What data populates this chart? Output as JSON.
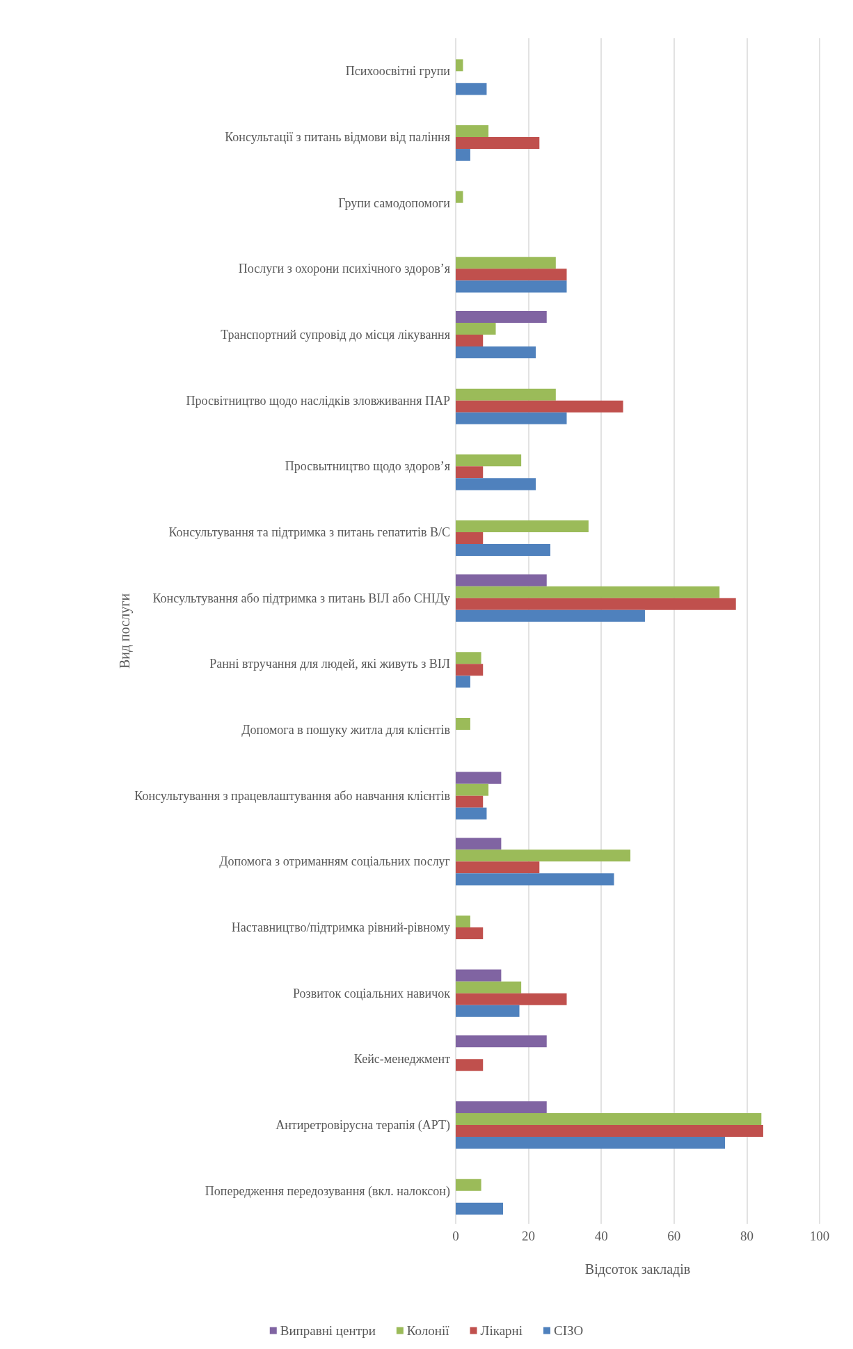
{
  "chart_data": {
    "type": "bar",
    "orientation": "horizontal",
    "xlabel": "Відсоток закладів",
    "ylabel": "Вид послуги",
    "categories": [
      "Психоосвітні групи",
      "Консультації з питань відмови від паління",
      "Групи самодопомоги",
      "Послуги з охорони психічного здоров’я",
      "Транспортний супровід до місця лікування",
      "Просвітництво щодо наслідків зловживання ПАР",
      "Просвытництво щодо здоров’я",
      "Консультування та підтримка з питань гепатитів В/С",
      "Консультування або підтримка з питань ВІЛ або СНІДу",
      "Ранні втручання для людей, які живуть з ВІЛ",
      "Допомога в пошуку житла для клієнтів",
      "Консультування з працевлаштування або навчання клієнтів",
      "Допомога з отриманням соціальних послуг",
      "Наставництво/підтримка рівний-рівному",
      "Розвиток соціальних навичок",
      "Кейс-менеджмент",
      "Антиретровірусна терапія (АРТ)",
      "Попередження передозування (вкл. налоксон)"
    ],
    "series": [
      {
        "name": "Виправні центри",
        "color": "#8064a2",
        "values": [
          null,
          null,
          null,
          null,
          25,
          null,
          null,
          null,
          25,
          null,
          null,
          12.5,
          12.5,
          null,
          12.5,
          25,
          25,
          null
        ]
      },
      {
        "name": "Колонії",
        "color": "#9bbb59",
        "values": [
          2,
          9,
          2,
          27.5,
          11,
          27.5,
          18,
          36.5,
          72.5,
          7,
          4,
          9,
          48,
          4,
          18,
          null,
          84,
          7
        ]
      },
      {
        "name": "Лікарні",
        "color": "#c0504d",
        "values": [
          null,
          23,
          null,
          30.5,
          7.5,
          46,
          7.5,
          7.5,
          77,
          7.5,
          null,
          7.5,
          23,
          7.5,
          30.5,
          7.5,
          84.5,
          null
        ]
      },
      {
        "name": "СІЗО",
        "color": "#4f81bd",
        "values": [
          8.5,
          4,
          null,
          30.5,
          22,
          30.5,
          22,
          26,
          52,
          4,
          null,
          8.5,
          43.5,
          null,
          17.5,
          null,
          74,
          13
        ]
      }
    ],
    "xlim": [
      0,
      100
    ],
    "xticks": [
      0,
      20,
      40,
      60,
      80,
      100
    ],
    "grid": "x",
    "legend": "bottom"
  }
}
